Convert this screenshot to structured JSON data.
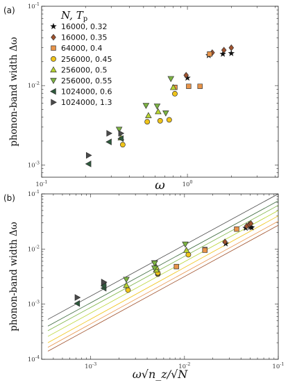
{
  "chart_data": [
    {
      "type": "scatter",
      "panel": "(a)",
      "title": "",
      "xlabel": "ω",
      "ylabel": "phonon-band width Δω",
      "xscale": "log",
      "yscale": "log",
      "xlim": [
        0.1,
        4.2
      ],
      "ylim": [
        0.0007,
        0.1
      ],
      "x_tick_labels": [
        "10^-1",
        "10^0"
      ],
      "y_tick_labels": [
        "10^-3",
        "10^-2",
        "10^-1"
      ],
      "legend_title": "N, T_p",
      "legend_position": "top-left",
      "series": [
        {
          "name": "16000, 0.32",
          "marker": "star",
          "color": "#111111",
          "points": [
            [
              1.0,
              0.0125
            ],
            [
              1.4,
              0.024
            ],
            [
              1.75,
              0.025
            ],
            [
              2.0,
              0.0255
            ]
          ]
        },
        {
          "name": "16000, 0.35",
          "marker": "diamond",
          "color": "#a0522d",
          "points": [
            [
              0.98,
              0.0135
            ],
            [
              1.48,
              0.026
            ],
            [
              1.78,
              0.028
            ],
            [
              2.0,
              0.03
            ]
          ]
        },
        {
          "name": "64000, 0.4",
          "marker": "square",
          "color": "#e8944a",
          "points": [
            [
              0.82,
              0.0095
            ],
            [
              1.02,
              0.0098
            ],
            [
              1.22,
              0.0098
            ],
            [
              1.42,
              0.025
            ]
          ]
        },
        {
          "name": "256000, 0.45",
          "marker": "circle",
          "color": "#f0c419",
          "points": [
            [
              0.36,
              0.0018
            ],
            [
              0.53,
              0.0035
            ],
            [
              0.65,
              0.0036
            ],
            [
              0.75,
              0.0037
            ],
            [
              0.82,
              0.0079
            ]
          ]
        },
        {
          "name": "256000, 0.5",
          "marker": "triangle-up",
          "color": "#b8d430",
          "points": [
            [
              0.35,
              0.0022
            ],
            [
              0.54,
              0.0042
            ],
            [
              0.63,
              0.0047
            ],
            [
              0.8,
              0.0095
            ]
          ]
        },
        {
          "name": "256000, 0.55",
          "marker": "triangle-down",
          "color": "#7cb342",
          "points": [
            [
              0.34,
              0.0028
            ],
            [
              0.52,
              0.0056
            ],
            [
              0.62,
              0.0055
            ],
            [
              0.71,
              0.0045
            ],
            [
              0.77,
              0.0122
            ]
          ]
        },
        {
          "name": "1024000, 0.6",
          "marker": "triangle-left",
          "color": "#2e5a3c",
          "points": [
            [
              0.21,
              0.00103
            ],
            [
              0.29,
              0.00195
            ],
            [
              0.35,
              0.00215
            ]
          ]
        },
        {
          "name": "1024000, 1.3",
          "marker": "triangle-right",
          "color": "#4a4a4a",
          "points": [
            [
              0.21,
              0.00132
            ],
            [
              0.29,
              0.0025
            ],
            [
              0.35,
              0.0025
            ]
          ]
        }
      ]
    },
    {
      "type": "scatter",
      "panel": "(b)",
      "title": "",
      "xlabel": "ω√n_z/√N",
      "ylabel": "phonon-band width Δω",
      "xscale": "log",
      "yscale": "log",
      "xlim": [
        0.0003,
        0.1
      ],
      "ylim": [
        0.0001,
        0.1
      ],
      "x_tick_labels": [
        "10^-3",
        "10^-2",
        "10^-1"
      ],
      "y_tick_labels": [
        "10^-4",
        "10^-3",
        "10^-2",
        "10^-1"
      ],
      "fit_lines": [
        {
          "color": "#444444",
          "x": [
            0.00035,
            0.1
          ],
          "y": [
            0.00053,
            0.1
          ]
        },
        {
          "color": "#3d6b3d",
          "x": [
            0.00035,
            0.1
          ],
          "y": [
            0.0004,
            0.075
          ]
        },
        {
          "color": "#7cb342",
          "x": [
            0.00035,
            0.1
          ],
          "y": [
            0.00033,
            0.062
          ]
        },
        {
          "color": "#b8d430",
          "x": [
            0.00035,
            0.1
          ],
          "y": [
            0.00026,
            0.05
          ]
        },
        {
          "color": "#f0c419",
          "x": [
            0.00035,
            0.1
          ],
          "y": [
            0.0002,
            0.04
          ]
        },
        {
          "color": "#e8944a",
          "x": [
            0.00035,
            0.1
          ],
          "y": [
            0.000165,
            0.032
          ]
        },
        {
          "color": "#a0522d",
          "x": [
            0.00035,
            0.1
          ],
          "y": [
            0.00014,
            0.027
          ]
        }
      ],
      "series": [
        {
          "name": "16000, 0.32",
          "marker": "star",
          "color": "#111111",
          "points": [
            [
              0.0275,
              0.0125
            ],
            [
              0.045,
              0.024
            ],
            [
              0.05,
              0.025
            ],
            [
              0.052,
              0.0245
            ]
          ]
        },
        {
          "name": "16000, 0.35",
          "marker": "diamond",
          "color": "#a0522d",
          "points": [
            [
              0.027,
              0.0135
            ],
            [
              0.046,
              0.026
            ],
            [
              0.049,
              0.028
            ],
            [
              0.051,
              0.029
            ]
          ]
        },
        {
          "name": "64000, 0.4",
          "marker": "square",
          "color": "#e8944a",
          "points": [
            [
              0.0082,
              0.0048
            ],
            [
              0.0165,
              0.0098
            ],
            [
              0.0165,
              0.0095
            ],
            [
              0.036,
              0.023
            ]
          ]
        },
        {
          "name": "256000, 0.45",
          "marker": "circle",
          "color": "#f0c419",
          "points": [
            [
              0.0025,
              0.0018
            ],
            [
              0.0052,
              0.0035
            ],
            [
              0.0052,
              0.0036
            ],
            [
              0.0052,
              0.0037
            ],
            [
              0.011,
              0.0079
            ]
          ]
        },
        {
          "name": "256000, 0.5",
          "marker": "triangle-up",
          "color": "#b8d430",
          "points": [
            [
              0.0024,
              0.0022
            ],
            [
              0.005,
              0.0042
            ],
            [
              0.005,
              0.0047
            ],
            [
              0.0105,
              0.0095
            ]
          ]
        },
        {
          "name": "256000, 0.55",
          "marker": "triangle-down",
          "color": "#7cb342",
          "points": [
            [
              0.0024,
              0.0028
            ],
            [
              0.0048,
              0.0056
            ],
            [
              0.0048,
              0.0055
            ],
            [
              0.0048,
              0.0045
            ],
            [
              0.0102,
              0.0122
            ]
          ]
        },
        {
          "name": "1024000, 0.6",
          "marker": "triangle-left",
          "color": "#2e5a3c",
          "points": [
            [
              0.00072,
              0.00103
            ],
            [
              0.00138,
              0.00195
            ],
            [
              0.00138,
              0.00215
            ]
          ]
        },
        {
          "name": "1024000, 1.3",
          "marker": "triangle-right",
          "color": "#4a4a4a",
          "points": [
            [
              0.00072,
              0.00132
            ],
            [
              0.00138,
              0.0025
            ],
            [
              0.00138,
              0.0025
            ]
          ]
        }
      ]
    }
  ]
}
